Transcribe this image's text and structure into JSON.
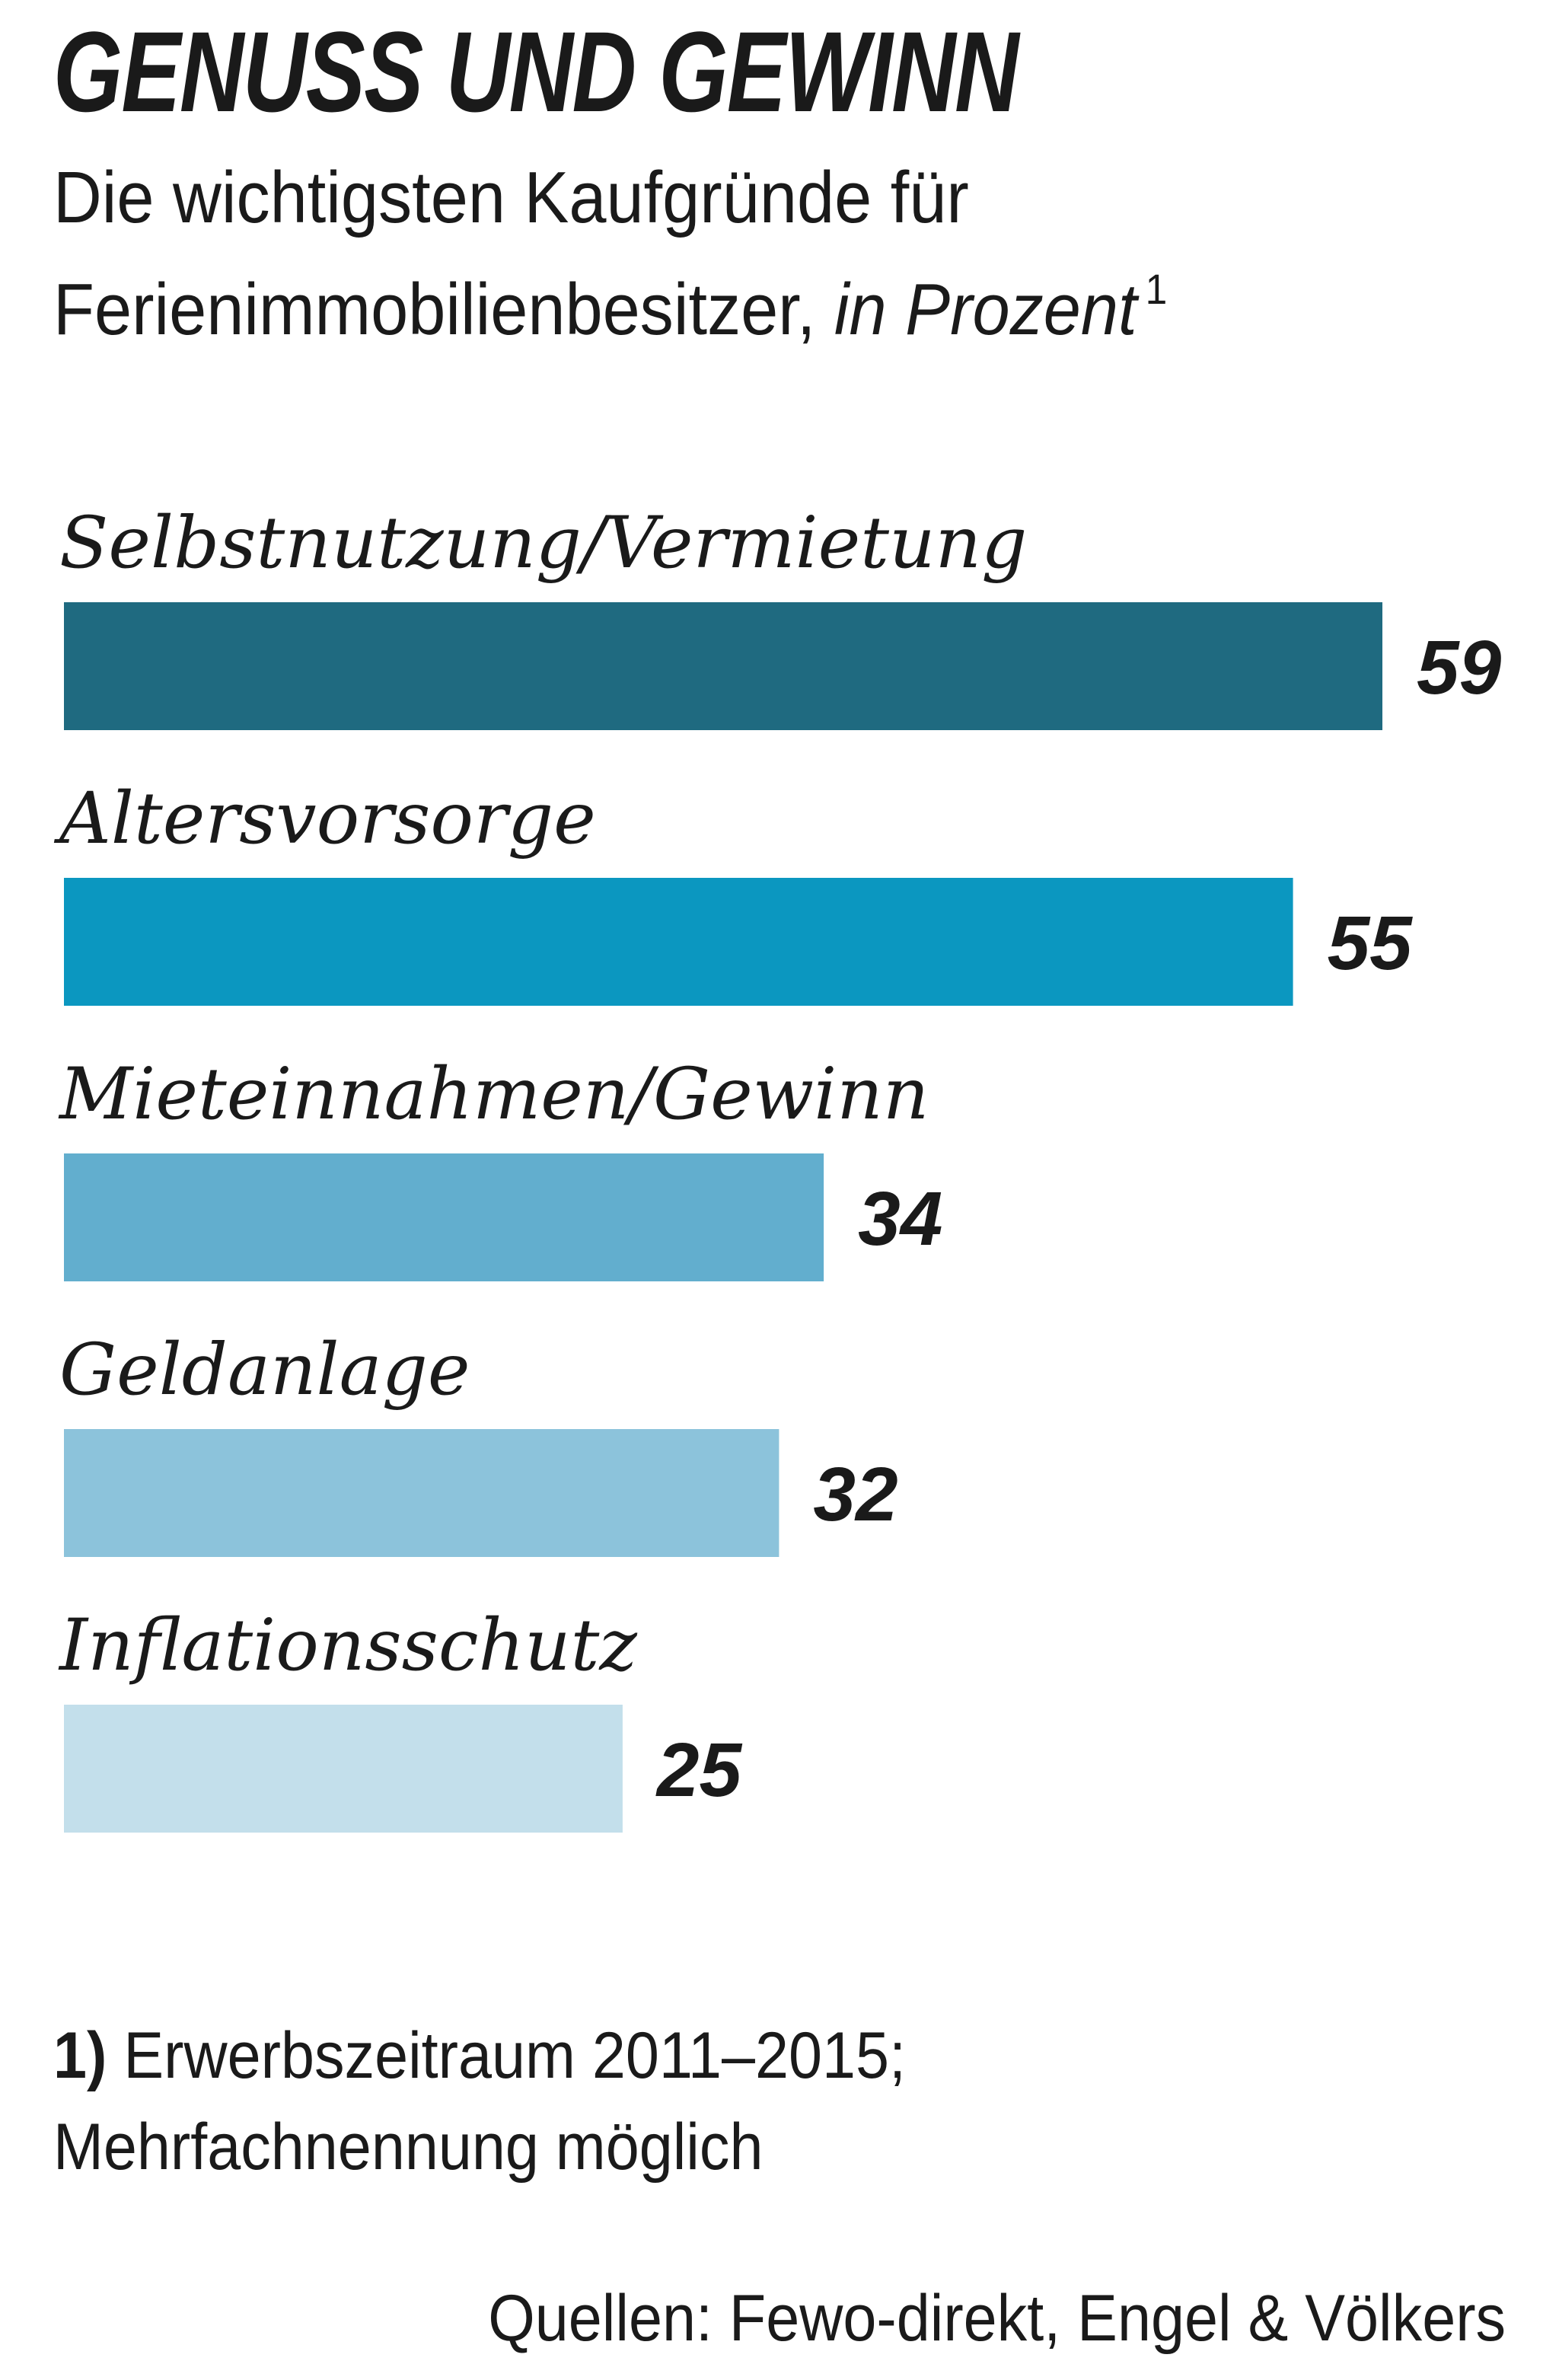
{
  "chart_data": {
    "type": "bar",
    "orientation": "horizontal",
    "title": "GENUSS UND GEWINN",
    "subtitle_line1": "Die wichtigsten Kaufgründe für",
    "subtitle_line2": "Ferienimmobilienbesitzer,",
    "unit": "in Prozent",
    "footnote_marker": "1",
    "categories": [
      "Selbstnutzung/Vermietung",
      "Altersvorsorge",
      "Mieteinnahmen/Gewinn",
      "Geldanlage",
      "Inflationsschutz"
    ],
    "values": [
      59,
      55,
      34,
      32,
      25
    ],
    "value_labels": [
      "59",
      "55",
      "34",
      "32",
      "25"
    ],
    "colors": [
      "#1f6a80",
      "#0b97c0",
      "#62aece",
      "#8cc3db",
      "#c3dfeb"
    ],
    "grid": false,
    "legend": "none"
  },
  "footnote": {
    "number": "1)",
    "line1": "Erwerbszeitraum 2011–2015;",
    "line2": "Mehrfachnennung möglich"
  },
  "source": "Quellen: Fewo-direkt, Engel & Völkers"
}
